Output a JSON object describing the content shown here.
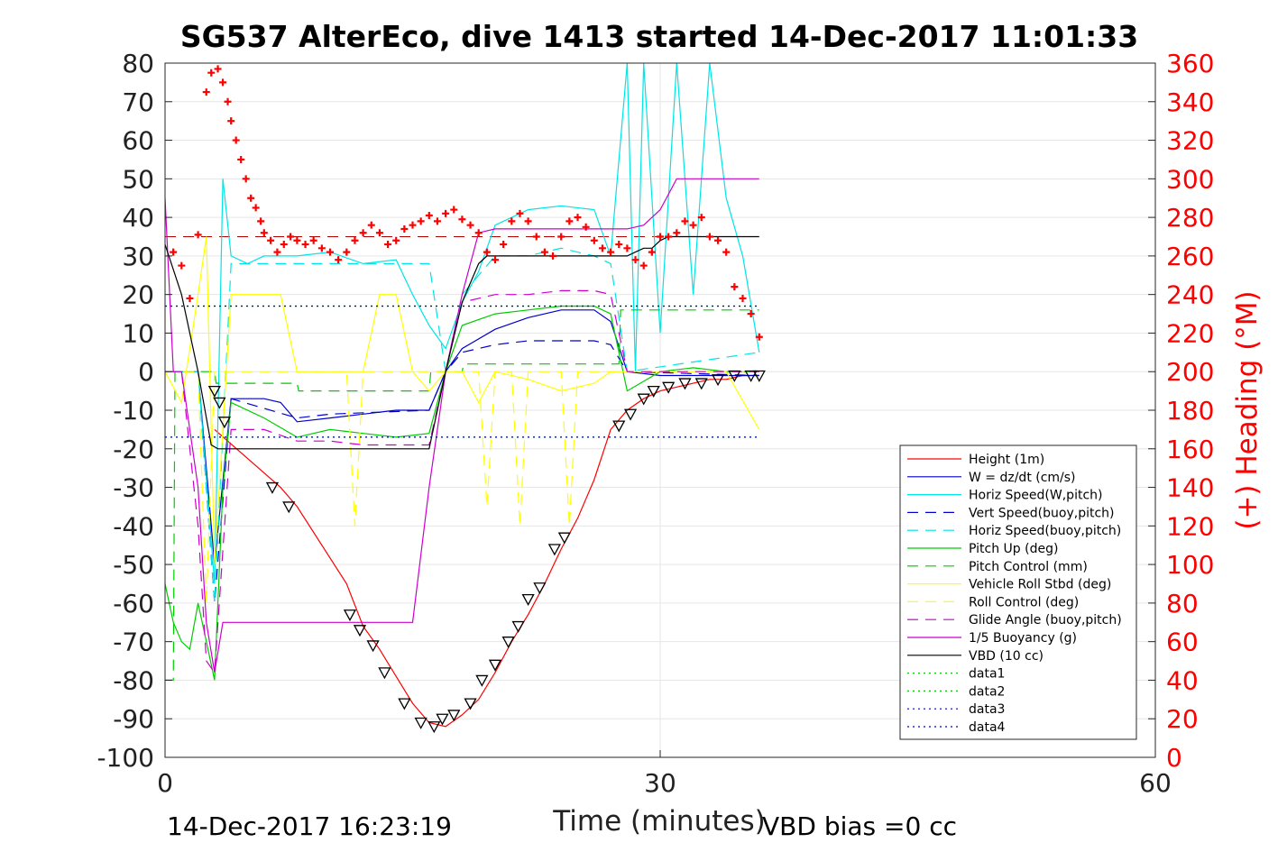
{
  "chart_data": {
    "type": "line",
    "title": "SG537 AlterEco, dive 1413 started 14-Dec-2017 11:01:33",
    "xlabel": "Time (minutes)",
    "ylabel_right": "(+) Heading (°M)",
    "xlim": [
      0,
      60
    ],
    "ylim": [
      -100,
      80
    ],
    "ylim_right": [
      0,
      360
    ],
    "xticks": [
      "0",
      "30",
      "60"
    ],
    "yticks_left": [
      "80",
      "70",
      "60",
      "50",
      "40",
      "30",
      "20",
      "10",
      "0",
      "-10",
      "-20",
      "-30",
      "-40",
      "-50",
      "-60",
      "-70",
      "-80",
      "-90",
      "-100"
    ],
    "yticks_right": [
      "360",
      "340",
      "320",
      "300",
      "280",
      "260",
      "240",
      "220",
      "200",
      "180",
      "160",
      "140",
      "120",
      "100",
      "80",
      "60",
      "40",
      "20",
      "0"
    ],
    "grid": true,
    "legend_position": "lower-right",
    "footer_left": "14-Dec-2017 16:23:19",
    "footer_right": "VBD bias =0 cc",
    "series": [
      {
        "name": "Height (1m)",
        "color": "#ff0000",
        "style": "solid",
        "x": [
          3,
          7,
          8,
          11,
          12,
          13,
          14,
          15,
          16,
          17,
          18,
          19,
          20,
          21,
          22,
          23,
          24,
          25,
          26,
          27,
          28,
          29,
          30,
          31,
          32,
          33,
          34,
          35,
          36
        ],
        "y": [
          -15,
          -30,
          -35,
          -55,
          -66,
          -72,
          -79,
          -86,
          -91,
          -92,
          -89,
          -85,
          -78,
          -70,
          -63,
          -55,
          -46,
          -38,
          -28,
          -15,
          -10,
          -7,
          -5,
          -4,
          -3,
          -2,
          -2,
          -1,
          -1
        ]
      },
      {
        "name": "W = dz/dt (cm/s)",
        "color": "#0000cc",
        "style": "solid",
        "x": [
          0,
          1,
          2,
          3,
          4,
          6,
          7,
          8,
          10,
          12,
          14,
          15,
          16,
          17,
          18,
          20,
          22,
          24,
          26,
          27,
          28,
          30,
          32,
          34,
          36
        ],
        "y": [
          0,
          0,
          0,
          -50,
          -7,
          -7,
          -8,
          -13,
          -12,
          -11,
          -10,
          -10,
          -10,
          0,
          6,
          11,
          14,
          16,
          16,
          13,
          0,
          -1,
          -1,
          -1,
          -1
        ]
      },
      {
        "name": "Horiz Speed(W,pitch)",
        "color": "#00e5e5",
        "style": "solid",
        "x": [
          0,
          1,
          2,
          3,
          3.5,
          4,
          5,
          6,
          8,
          10,
          12,
          14,
          15,
          16,
          17,
          18,
          19,
          20,
          22,
          24,
          26,
          27,
          28,
          28.5,
          29,
          30,
          31,
          32,
          33,
          34,
          35,
          36
        ],
        "y": [
          0,
          0,
          0,
          -55,
          50,
          30,
          28,
          30,
          30,
          31,
          28,
          29,
          20,
          12,
          6,
          18,
          26,
          38,
          42,
          43,
          42,
          30,
          80,
          0,
          80,
          10,
          80,
          20,
          80,
          45,
          30,
          5
        ]
      },
      {
        "name": "Vert Speed(buoy,pitch)",
        "color": "#0000cc",
        "style": "dashed",
        "x": [
          0,
          2,
          3,
          4,
          8,
          10,
          16,
          17,
          18,
          20,
          22,
          24,
          26,
          27,
          28,
          36
        ],
        "y": [
          0,
          0,
          -60,
          -7,
          -12,
          -11,
          -10,
          0,
          5,
          7,
          8,
          8,
          8,
          7,
          0,
          -1
        ]
      },
      {
        "name": "Horiz Speed(buoy,pitch)",
        "color": "#00e5e5",
        "style": "dashed",
        "x": [
          0,
          2,
          3,
          4,
          8,
          10,
          16,
          17,
          18,
          20,
          22,
          24,
          26,
          27,
          28,
          36
        ],
        "y": [
          0,
          0,
          -60,
          28,
          28,
          28,
          28,
          0,
          20,
          30,
          30,
          32,
          30,
          28,
          0,
          5
        ]
      },
      {
        "name": "Pitch Up (deg)",
        "color": "#00cc00",
        "style": "solid",
        "x": [
          0,
          0.5,
          1,
          1.5,
          2,
          2.5,
          3,
          3.5,
          4,
          6,
          8,
          10,
          12,
          14,
          16,
          17,
          18,
          20,
          22,
          24,
          26,
          27,
          28,
          30,
          32,
          34,
          36
        ],
        "y": [
          -55,
          -65,
          -70,
          -72,
          -60,
          -70,
          -80,
          -30,
          -8,
          -12,
          -17,
          -15,
          -16,
          -17,
          -16,
          0,
          12,
          15,
          16,
          17,
          17,
          15,
          -5,
          0,
          1,
          0,
          0
        ]
      },
      {
        "name": "Pitch Control (mm)",
        "color": "#00cc00",
        "style": "dashed",
        "x": [
          0,
          0.5,
          0.6,
          3,
          3.1,
          8,
          8.1,
          16,
          16.1,
          18,
          18.1,
          27.5,
          27.6,
          36
        ],
        "y": [
          -80,
          -80,
          0,
          0,
          -3,
          -3,
          -5,
          -5,
          0,
          0,
          2,
          2,
          16,
          16
        ]
      },
      {
        "name": "Vehicle Roll Stbd (deg)",
        "color": "#ffff00",
        "style": "solid",
        "x": [
          0,
          1,
          2,
          2.5,
          3,
          4,
          6,
          7,
          8,
          10,
          12,
          13,
          14,
          15,
          16,
          17,
          18,
          19,
          20,
          22,
          24,
          26,
          27,
          28,
          30,
          32,
          34,
          36
        ],
        "y": [
          0,
          -8,
          20,
          35,
          -50,
          20,
          20,
          20,
          0,
          0,
          0,
          20,
          20,
          0,
          -5,
          0,
          0,
          -8,
          0,
          -2,
          -5,
          -3,
          0,
          0,
          0,
          0,
          0,
          -15
        ]
      },
      {
        "name": "Roll Control (deg)",
        "color": "#ffff00",
        "style": "dashed",
        "x": [
          0,
          2,
          2.5,
          3,
          8,
          11,
          11.5,
          12,
          18,
          19,
          19.5,
          20,
          21,
          21.5,
          22,
          24,
          24.5,
          25,
          27,
          28,
          36
        ],
        "y": [
          0,
          0,
          -60,
          0,
          0,
          0,
          -40,
          0,
          0,
          0,
          -35,
          0,
          0,
          -40,
          0,
          0,
          -40,
          0,
          0,
          0,
          0
        ]
      },
      {
        "name": "Glide Angle (buoy,pitch)",
        "color": "#cc00cc",
        "style": "dashed",
        "x": [
          0,
          1,
          2,
          2.5,
          3,
          4,
          6,
          8,
          10,
          12,
          14,
          16,
          17,
          18,
          20,
          22,
          24,
          26,
          27,
          28,
          36
        ],
        "y": [
          0,
          0,
          -40,
          -75,
          -78,
          -15,
          -15,
          -18,
          -18,
          -19,
          -19,
          -19,
          0,
          18,
          20,
          20,
          21,
          21,
          20,
          0,
          0
        ]
      },
      {
        "name": "1/5 Buoyancy (g)",
        "color": "#cc00cc",
        "style": "solid",
        "x": [
          0,
          0.5,
          1,
          2,
          2.5,
          3,
          3.5,
          4,
          10,
          14,
          15,
          16,
          17,
          18,
          19,
          20,
          22,
          24,
          26,
          27,
          28,
          29,
          30,
          31,
          32,
          33,
          34,
          35,
          36
        ],
        "y": [
          45,
          0,
          0,
          -30,
          -65,
          -78,
          -65,
          -65,
          -65,
          -65,
          -65,
          -30,
          0,
          20,
          36,
          37,
          37,
          37,
          37,
          37,
          37,
          38,
          42,
          50,
          50,
          50,
          50,
          50,
          50
        ]
      },
      {
        "name": "VBD (10 cc)",
        "color": "#000000",
        "style": "solid",
        "x": [
          0,
          1,
          2,
          2.8,
          3.2,
          8,
          12,
          16,
          17,
          18,
          19,
          19.5,
          20,
          24,
          28,
          28.5,
          29,
          29.5,
          30,
          30.5,
          31,
          34,
          36
        ],
        "y": [
          33,
          20,
          0,
          -19,
          -20,
          -20,
          -20,
          -20,
          0,
          18,
          28,
          30,
          30,
          30,
          30,
          31,
          32,
          32,
          34,
          35,
          35,
          35,
          35
        ]
      },
      {
        "name": "data1",
        "color": "#00cc00",
        "style": "dotted",
        "x": [
          0,
          36
        ],
        "y": [
          17,
          17
        ]
      },
      {
        "name": "data2",
        "color": "#00cc00",
        "style": "dotted",
        "x": [
          0,
          36
        ],
        "y": [
          -17,
          -17
        ]
      },
      {
        "name": "data3",
        "color": "#0000cc",
        "style": "dotted",
        "x": [
          0,
          36
        ],
        "y": [
          17,
          17
        ]
      },
      {
        "name": "data4",
        "color": "#0000cc",
        "style": "dotted",
        "x": [
          0,
          36
        ],
        "y": [
          -17,
          -17
        ]
      }
    ],
    "heading_reference": {
      "color": "#b00000",
      "style": "dashed",
      "y_right": 270,
      "x": [
        0,
        36
      ]
    },
    "heading_points": {
      "color": "#ff0000",
      "marker": "plus",
      "x": [
        0.5,
        1,
        1.5,
        2,
        2.5,
        2.8,
        3.2,
        3.5,
        3.8,
        4,
        4.3,
        4.6,
        4.9,
        5.2,
        5.5,
        5.8,
        6,
        6.4,
        6.8,
        7.2,
        7.6,
        8,
        8.5,
        9,
        9.5,
        10,
        10.5,
        11,
        11.5,
        12,
        12.5,
        13,
        13.5,
        14,
        14.5,
        15,
        15.5,
        16,
        16.5,
        17,
        17.5,
        18,
        18.5,
        19,
        19.5,
        20,
        20.5,
        21,
        21.5,
        22,
        22.5,
        23,
        23.5,
        24,
        24.5,
        25,
        25.5,
        26,
        26.5,
        27,
        27.5,
        28,
        28.5,
        29,
        29.5,
        30,
        30.5,
        31,
        31.5,
        32,
        32.5,
        33,
        33.5,
        34,
        34.5,
        35,
        35.5,
        36
      ],
      "y_right": [
        262,
        255,
        238,
        271,
        345,
        355,
        357,
        350,
        340,
        330,
        320,
        310,
        300,
        290,
        285,
        278,
        272,
        268,
        262,
        266,
        270,
        268,
        266,
        268,
        264,
        262,
        258,
        262,
        268,
        272,
        276,
        272,
        266,
        268,
        274,
        276,
        278,
        281,
        278,
        282,
        284,
        279,
        276,
        272,
        262,
        258,
        266,
        278,
        282,
        278,
        270,
        262,
        260,
        270,
        278,
        280,
        275,
        268,
        264,
        262,
        266,
        264,
        258,
        255,
        262,
        270,
        270,
        272,
        278,
        276,
        280,
        270,
        268,
        262,
        244,
        238,
        230,
        218
      ]
    },
    "depth_markers": {
      "color": "#000000",
      "marker": "triangle",
      "x": [
        3,
        3.3,
        3.6,
        6.5,
        7.5,
        11.2,
        11.8,
        12.6,
        13.3,
        14.5,
        15.5,
        16.3,
        16.8,
        17.5,
        18.5,
        19.2,
        20,
        20.8,
        21.4,
        22,
        22.7,
        23.6,
        24.2,
        27.5,
        28.2,
        29,
        29.6,
        30.5,
        31.5,
        32.5,
        33.5,
        34.5,
        35.5,
        36
      ],
      "y": [
        -5,
        -8,
        -13,
        -30,
        -35,
        -63,
        -67,
        -71,
        -78,
        -86,
        -91,
        -92,
        -90,
        -89,
        -86,
        -80,
        -76,
        -70,
        -66,
        -59,
        -56,
        -46,
        -43,
        -14,
        -11,
        -7,
        -5,
        -4,
        -3,
        -3,
        -2,
        -1,
        -1,
        -1
      ]
    }
  }
}
